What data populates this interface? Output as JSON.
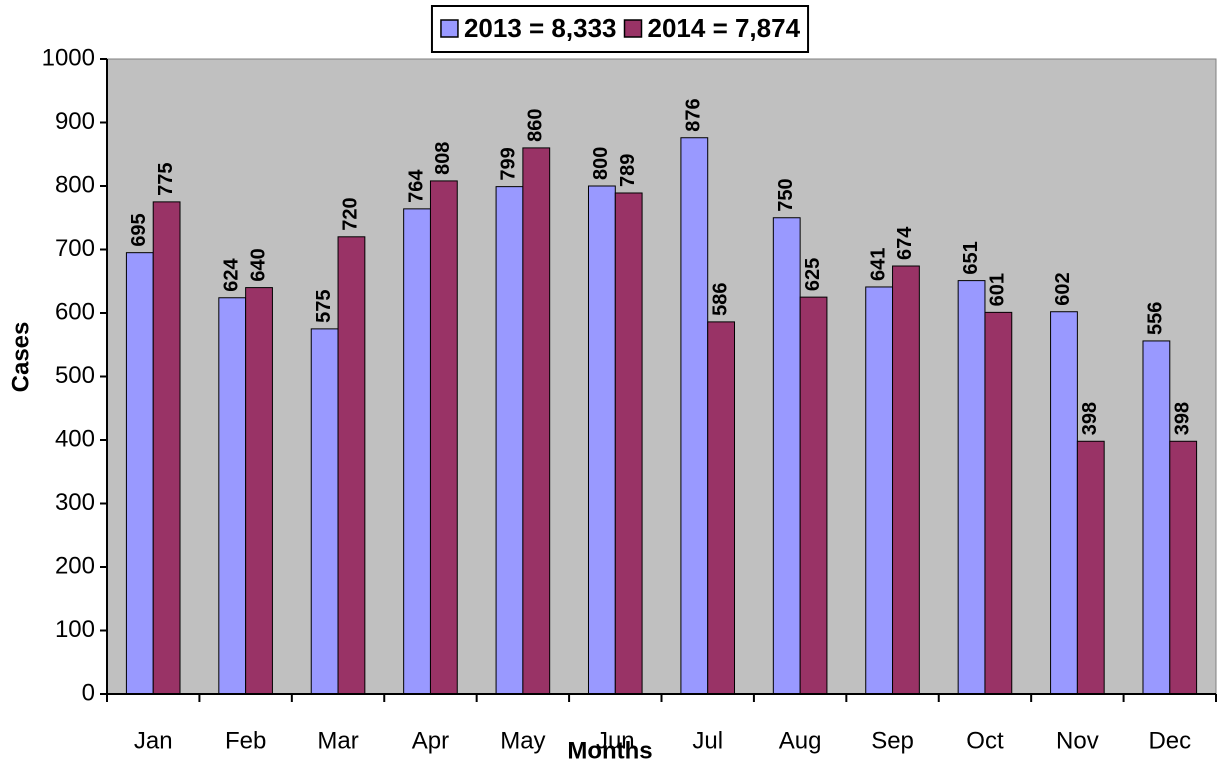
{
  "chart_data": {
    "type": "bar",
    "x_label": "Months",
    "y_label": "Cases",
    "categories": [
      "Jan",
      "Feb",
      "Mar",
      "Apr",
      "May",
      "Jun",
      "Jul",
      "Aug",
      "Sep",
      "Oct",
      "Nov",
      "Dec"
    ],
    "series": [
      {
        "name": "2013 = 8,333",
        "color": "#9999ff",
        "values": [
          695,
          624,
          575,
          764,
          799,
          800,
          876,
          750,
          641,
          651,
          602,
          556
        ]
      },
      {
        "name": "2014 = 7,874",
        "color": "#993366",
        "values": [
          775,
          640,
          720,
          808,
          860,
          789,
          586,
          625,
          674,
          601,
          398,
          398
        ]
      }
    ],
    "ylim": [
      0,
      1000
    ],
    "yticks": [
      0,
      100,
      200,
      300,
      400,
      500,
      600,
      700,
      800,
      900,
      1000
    ],
    "legend": "top",
    "background": "#c0c0c0"
  }
}
